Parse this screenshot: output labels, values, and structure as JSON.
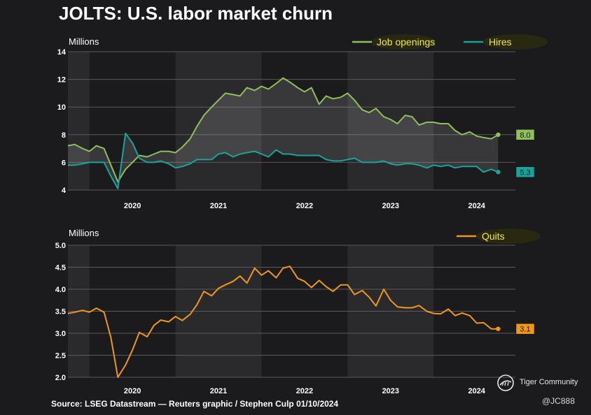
{
  "title": "JOLTS: U.S. labor market churn",
  "source": "Source: LSEG Datastream — Reuters graphic / Stephen Culp 01/10/2024",
  "watermark": "Tiger Community",
  "watermark_icon": "tiger-community-logo-icon",
  "handle": "@JC888",
  "colors": {
    "job_openings": "#8fbf5a",
    "hires": "#1aa39a",
    "quits": "#f0961c",
    "legend_text": "#f3e84a",
    "shade": "#2a2a2c",
    "grid": "#5a5a5a"
  },
  "chart_data": [
    {
      "type": "line",
      "ylabel": "Millions",
      "ylim": [
        4,
        14
      ],
      "yticks": [
        "4",
        "6",
        "8",
        "10",
        "12",
        "14"
      ],
      "xlim": [
        2019.25,
        2024.45
      ],
      "xticks": [
        {
          "label": "2020",
          "value": 2020.0
        },
        {
          "label": "2021",
          "value": 2021.0
        },
        {
          "label": "2022",
          "value": 2022.0
        },
        {
          "label": "2023",
          "value": 2023.0
        },
        {
          "label": "2024",
          "value": 2024.0
        }
      ],
      "shaded_ranges": [
        [
          2019.25,
          2019.5
        ],
        [
          2020.5,
          2021.5
        ],
        [
          2022.5,
          2023.5
        ]
      ],
      "fill_between": true,
      "legend_position": "top-right",
      "series": [
        {
          "name": "Job openings",
          "color": "#8fbf5a",
          "end_label": "8.0",
          "x": [
            2019.25,
            2019.33,
            2019.42,
            2019.5,
            2019.58,
            2019.67,
            2019.75,
            2019.83,
            2019.92,
            2020.0,
            2020.08,
            2020.17,
            2020.25,
            2020.33,
            2020.42,
            2020.5,
            2020.58,
            2020.67,
            2020.75,
            2020.83,
            2020.92,
            2021.0,
            2021.08,
            2021.17,
            2021.25,
            2021.33,
            2021.42,
            2021.5,
            2021.58,
            2021.67,
            2021.75,
            2021.83,
            2021.92,
            2022.0,
            2022.08,
            2022.17,
            2022.25,
            2022.33,
            2022.42,
            2022.5,
            2022.58,
            2022.67,
            2022.75,
            2022.83,
            2022.92,
            2023.0,
            2023.08,
            2023.17,
            2023.25,
            2023.33,
            2023.42,
            2023.5,
            2023.58,
            2023.67,
            2023.75,
            2023.83,
            2023.92,
            2024.0,
            2024.08,
            2024.17,
            2024.25
          ],
          "values": [
            7.2,
            7.3,
            7.0,
            6.8,
            7.2,
            7.0,
            5.8,
            4.6,
            5.5,
            6.0,
            6.5,
            6.4,
            6.6,
            6.8,
            6.8,
            6.7,
            7.1,
            7.7,
            8.6,
            9.4,
            10.0,
            10.5,
            11.0,
            10.9,
            10.8,
            11.4,
            11.2,
            11.5,
            11.3,
            11.7,
            12.1,
            11.8,
            11.4,
            11.1,
            11.4,
            10.2,
            10.8,
            10.6,
            10.7,
            11.0,
            10.5,
            9.8,
            9.6,
            9.9,
            9.3,
            9.1,
            8.8,
            9.4,
            9.3,
            8.7,
            8.9,
            8.9,
            8.8,
            8.8,
            8.3,
            8.0,
            8.2,
            7.9,
            7.8,
            7.7,
            8.0
          ]
        },
        {
          "name": "Hires",
          "color": "#1aa39a",
          "end_label": "5.3",
          "x": [
            2019.25,
            2019.33,
            2019.42,
            2019.5,
            2019.58,
            2019.67,
            2019.75,
            2019.83,
            2019.92,
            2020.0,
            2020.08,
            2020.17,
            2020.25,
            2020.33,
            2020.42,
            2020.5,
            2020.58,
            2020.67,
            2020.75,
            2020.83,
            2020.92,
            2021.0,
            2021.08,
            2021.17,
            2021.25,
            2021.33,
            2021.42,
            2021.5,
            2021.58,
            2021.67,
            2021.75,
            2021.83,
            2021.92,
            2022.0,
            2022.08,
            2022.17,
            2022.25,
            2022.33,
            2022.42,
            2022.5,
            2022.58,
            2022.67,
            2022.75,
            2022.83,
            2022.92,
            2023.0,
            2023.08,
            2023.17,
            2023.25,
            2023.33,
            2023.42,
            2023.5,
            2023.58,
            2023.67,
            2023.75,
            2023.83,
            2023.92,
            2024.0,
            2024.08,
            2024.17,
            2024.25
          ],
          "values": [
            5.8,
            5.8,
            5.9,
            6.0,
            6.0,
            6.0,
            5.0,
            4.1,
            8.1,
            7.4,
            6.3,
            6.0,
            6.0,
            6.1,
            5.9,
            5.6,
            5.7,
            5.9,
            6.2,
            6.2,
            6.2,
            6.6,
            6.7,
            6.4,
            6.6,
            6.7,
            6.8,
            6.6,
            6.4,
            6.9,
            6.6,
            6.6,
            6.5,
            6.5,
            6.5,
            6.5,
            6.2,
            6.1,
            6.1,
            6.2,
            6.3,
            6.0,
            6.0,
            6.0,
            6.1,
            5.9,
            5.8,
            5.9,
            5.9,
            5.8,
            5.6,
            5.8,
            5.7,
            5.8,
            5.6,
            5.7,
            5.7,
            5.7,
            5.3,
            5.5,
            5.3
          ]
        }
      ]
    },
    {
      "type": "line",
      "ylabel": "Millions",
      "ylim": [
        2.0,
        5.0
      ],
      "yticks": [
        "2.0",
        "2.5",
        "3.0",
        "3.5",
        "4.0",
        "4.5",
        "5.0"
      ],
      "xlim": [
        2019.25,
        2024.45
      ],
      "xticks": [
        {
          "label": "2020",
          "value": 2020.0
        },
        {
          "label": "2021",
          "value": 2021.0
        },
        {
          "label": "2022",
          "value": 2022.0
        },
        {
          "label": "2023",
          "value": 2023.0
        },
        {
          "label": "2024",
          "value": 2024.0
        }
      ],
      "shaded_ranges": [
        [
          2019.25,
          2019.5
        ],
        [
          2020.5,
          2021.5
        ],
        [
          2022.5,
          2023.5
        ]
      ],
      "legend_position": "top-right",
      "series": [
        {
          "name": "Quits",
          "color": "#f0961c",
          "end_label": "3.1",
          "x": [
            2019.25,
            2019.33,
            2019.42,
            2019.5,
            2019.58,
            2019.67,
            2019.75,
            2019.83,
            2019.92,
            2020.0,
            2020.08,
            2020.17,
            2020.25,
            2020.33,
            2020.42,
            2020.5,
            2020.58,
            2020.67,
            2020.75,
            2020.83,
            2020.92,
            2021.0,
            2021.08,
            2021.17,
            2021.25,
            2021.33,
            2021.42,
            2021.5,
            2021.58,
            2021.67,
            2021.75,
            2021.83,
            2021.92,
            2022.0,
            2022.08,
            2022.17,
            2022.25,
            2022.33,
            2022.42,
            2022.5,
            2022.58,
            2022.67,
            2022.75,
            2022.83,
            2022.92,
            2023.0,
            2023.08,
            2023.17,
            2023.25,
            2023.33,
            2023.42,
            2023.5,
            2023.58,
            2023.67,
            2023.75,
            2023.83,
            2023.92,
            2024.0,
            2024.08,
            2024.17,
            2024.25
          ],
          "values": [
            3.45,
            3.48,
            3.52,
            3.48,
            3.57,
            3.48,
            2.9,
            2.0,
            2.28,
            2.62,
            3.02,
            2.92,
            3.18,
            3.3,
            3.26,
            3.38,
            3.29,
            3.43,
            3.65,
            3.95,
            3.85,
            4.02,
            4.1,
            4.18,
            4.3,
            4.14,
            4.48,
            4.32,
            4.42,
            4.26,
            4.48,
            4.52,
            4.25,
            4.18,
            4.04,
            4.2,
            4.06,
            3.95,
            4.1,
            4.1,
            3.88,
            3.97,
            3.82,
            3.62,
            4.0,
            3.75,
            3.6,
            3.58,
            3.58,
            3.63,
            3.5,
            3.45,
            3.44,
            3.55,
            3.4,
            3.46,
            3.4,
            3.23,
            3.24,
            3.1,
            3.1
          ]
        }
      ]
    }
  ]
}
